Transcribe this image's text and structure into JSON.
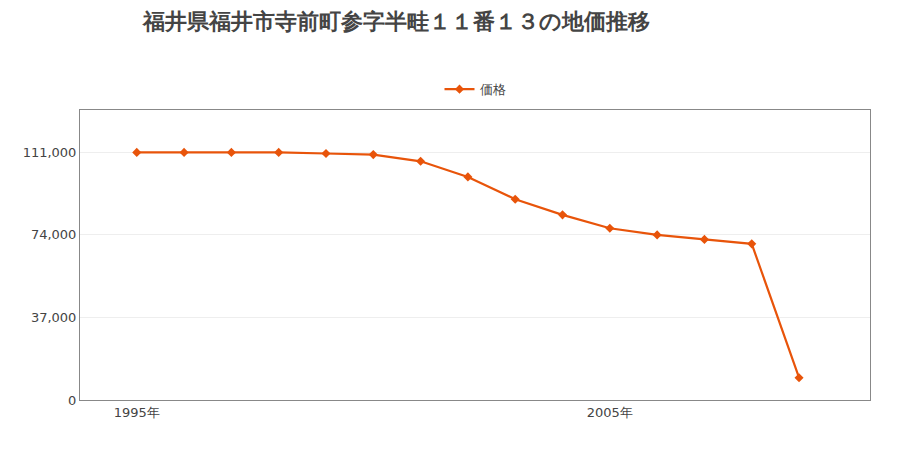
{
  "chart_data": {
    "type": "line",
    "title": "福井県福井市寺前町参字半畦１１番１３の地価推移",
    "x": [
      1995,
      1996,
      1997,
      1998,
      1999,
      2000,
      2001,
      2002,
      2003,
      2004,
      2005,
      2006,
      2007,
      2008,
      2009
    ],
    "series": [
      {
        "name": "価格",
        "color": "#e8540a",
        "marker": "diamond",
        "values": [
          111000,
          111000,
          111000,
          111000,
          110500,
          110000,
          107000,
          100000,
          90000,
          83000,
          77000,
          74000,
          72000,
          70000,
          10000
        ]
      }
    ],
    "xlim": [
      1993.8,
      2010.5
    ],
    "xticks": [
      {
        "value": 1995,
        "label": "1995年"
      },
      {
        "value": 2005,
        "label": "2005年"
      }
    ],
    "ylim": [
      0,
      130000
    ],
    "yticks": [
      0,
      {
        "value": 37000,
        "label": "37,000"
      },
      {
        "value": 74000,
        "label": "74,000"
      },
      {
        "value": 111000,
        "label": "111,000"
      }
    ],
    "grid": "y",
    "legend": "top"
  }
}
